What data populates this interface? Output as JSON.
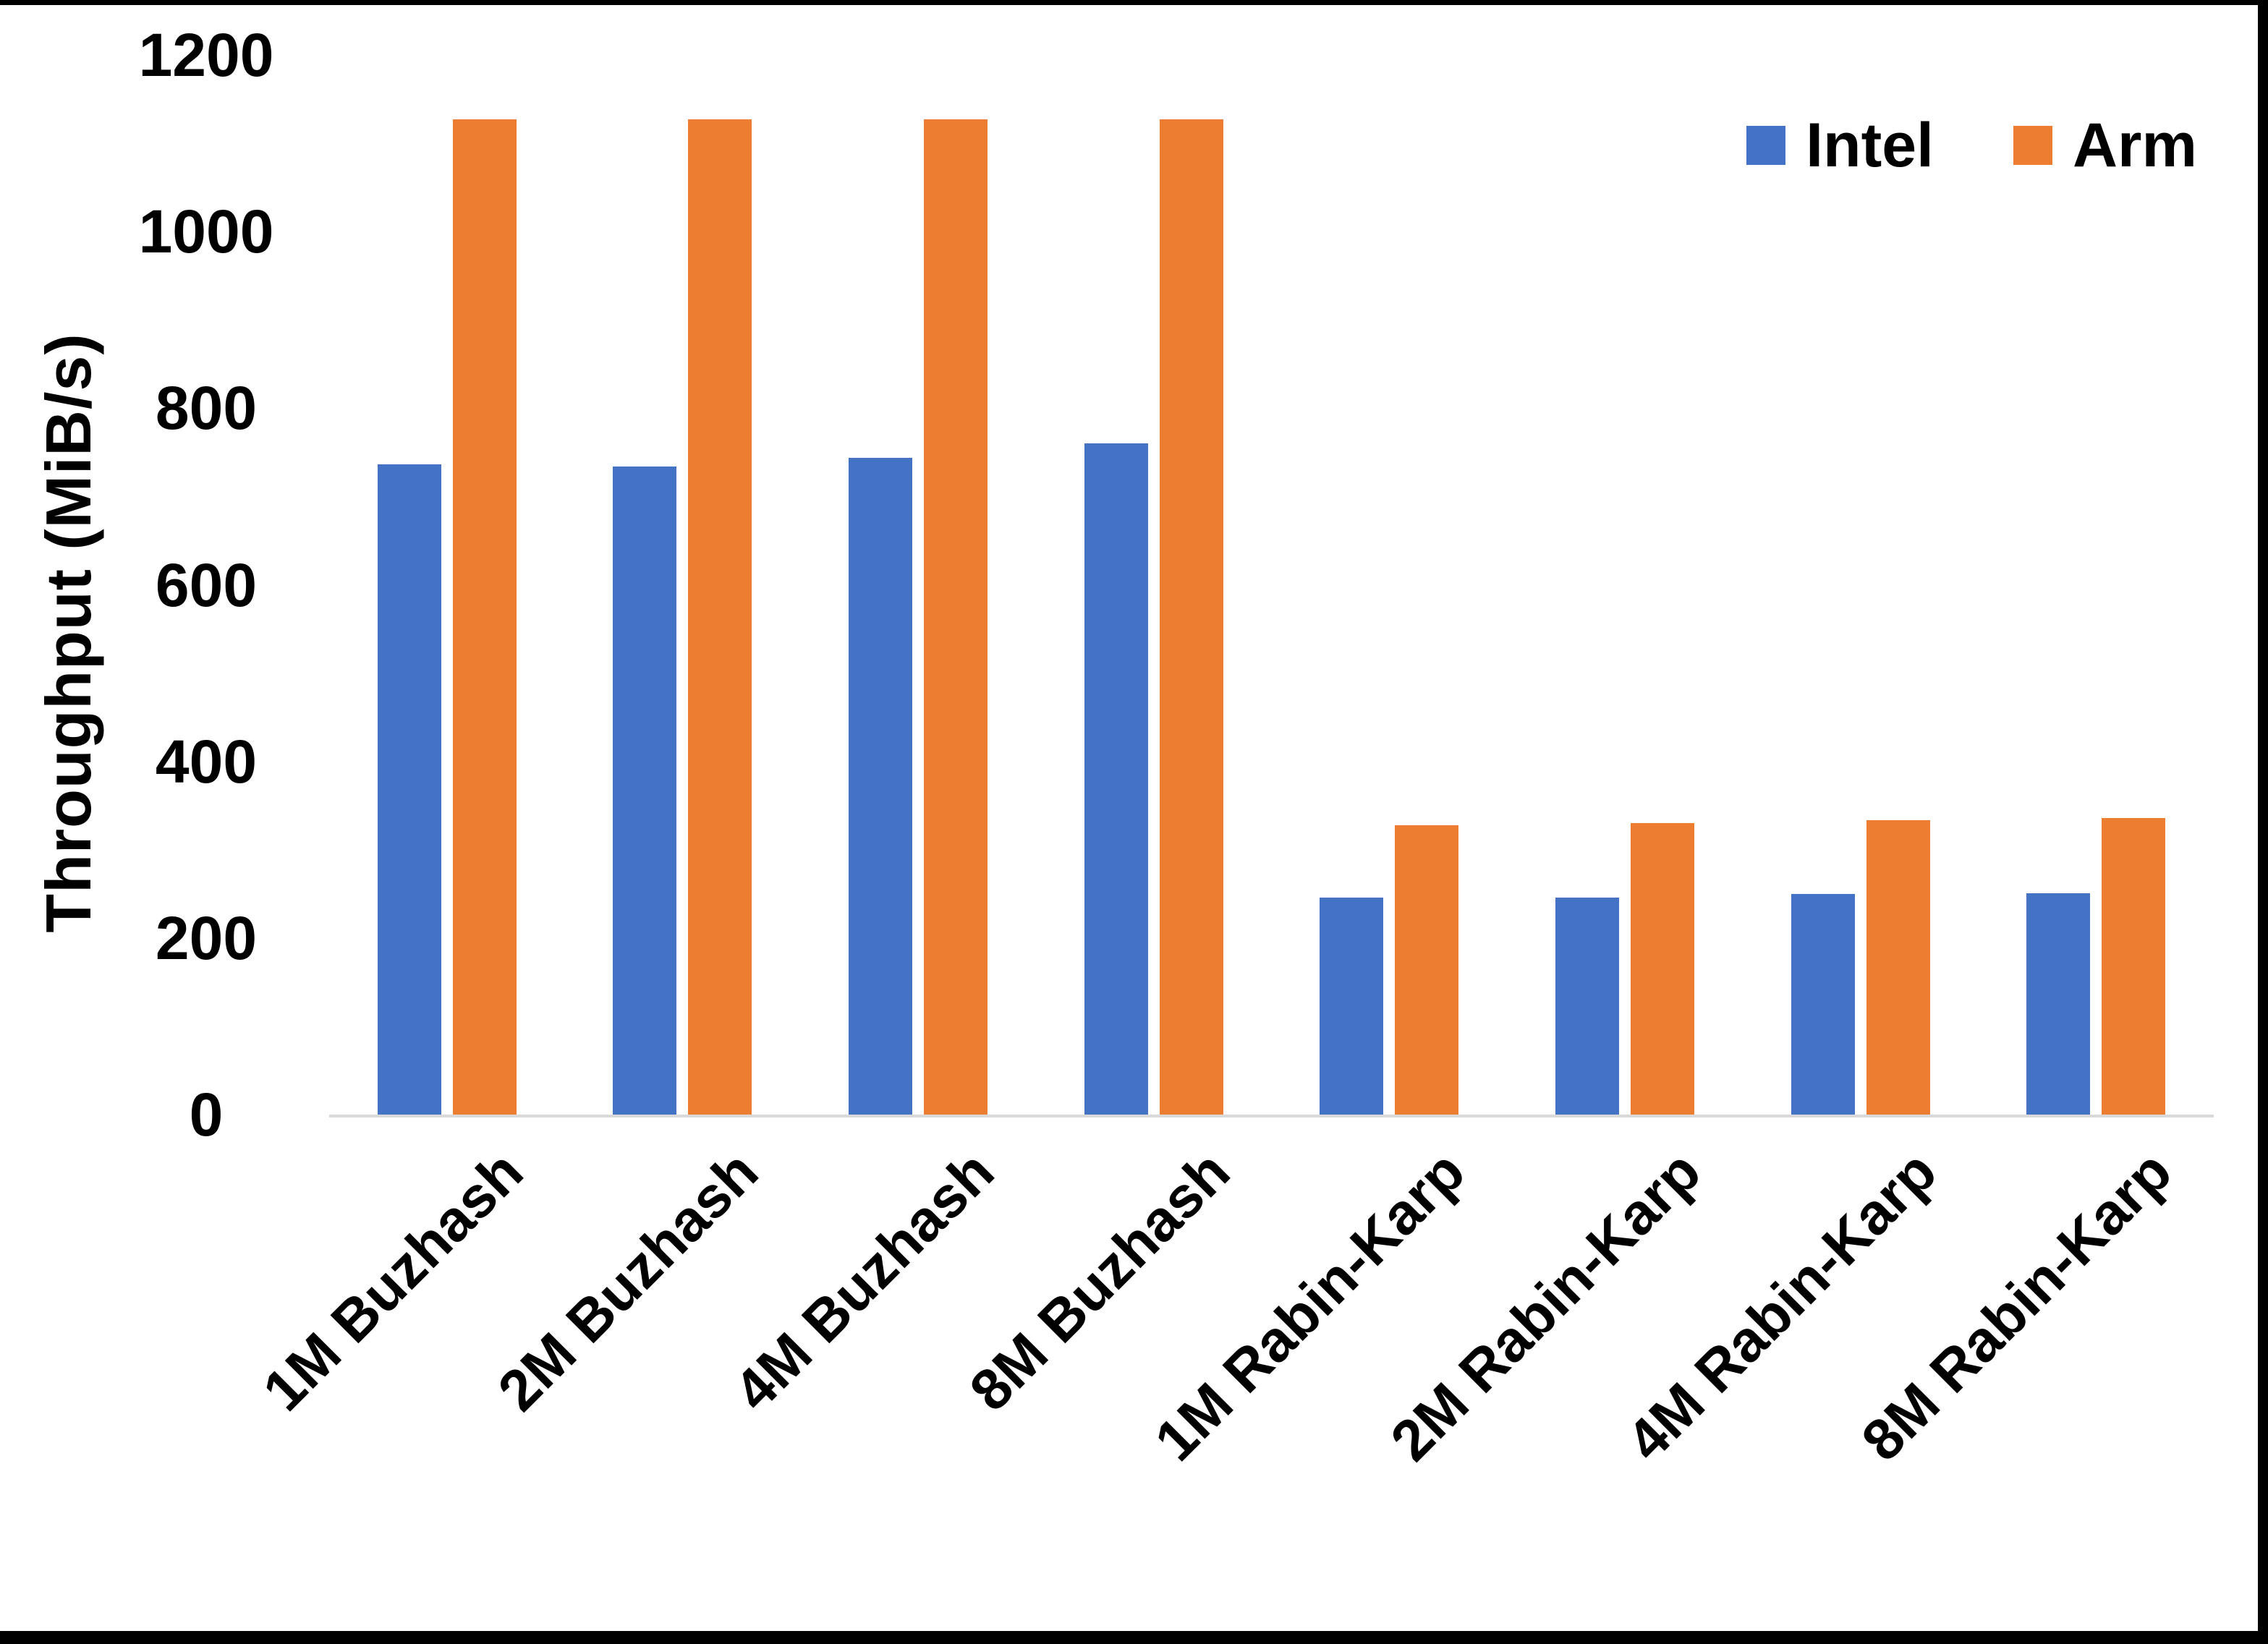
{
  "chart_data": {
    "type": "bar",
    "title": "",
    "ylabel": "Throughput (MiB/s)",
    "xlabel": "",
    "ylim": [
      0,
      1200
    ],
    "yticks": [
      0,
      200,
      400,
      600,
      800,
      1000,
      1200
    ],
    "grid": false,
    "legend_position": "top-right",
    "categories": [
      "1M Buzhash",
      "2M Buzhash",
      "4M Buzhash",
      "8M Buzhash",
      "1M Rabin-Karp",
      "2M Rabin-Karp",
      "4M Rabin-Karp",
      "8M Rabin-Karp"
    ],
    "series": [
      {
        "name": "Intel",
        "color": "#4472C4",
        "values": [
          736,
          734,
          744,
          760,
          246,
          246,
          250,
          251
        ]
      },
      {
        "name": "Arm",
        "color": "#ED7D31",
        "values": [
          1127,
          1127,
          1127,
          1127,
          328,
          330,
          333,
          336
        ]
      }
    ]
  },
  "colors": {
    "background": "#FFFFFF",
    "axis_line": "#D9D9D9",
    "text": "#000000",
    "frame": "#000000"
  }
}
